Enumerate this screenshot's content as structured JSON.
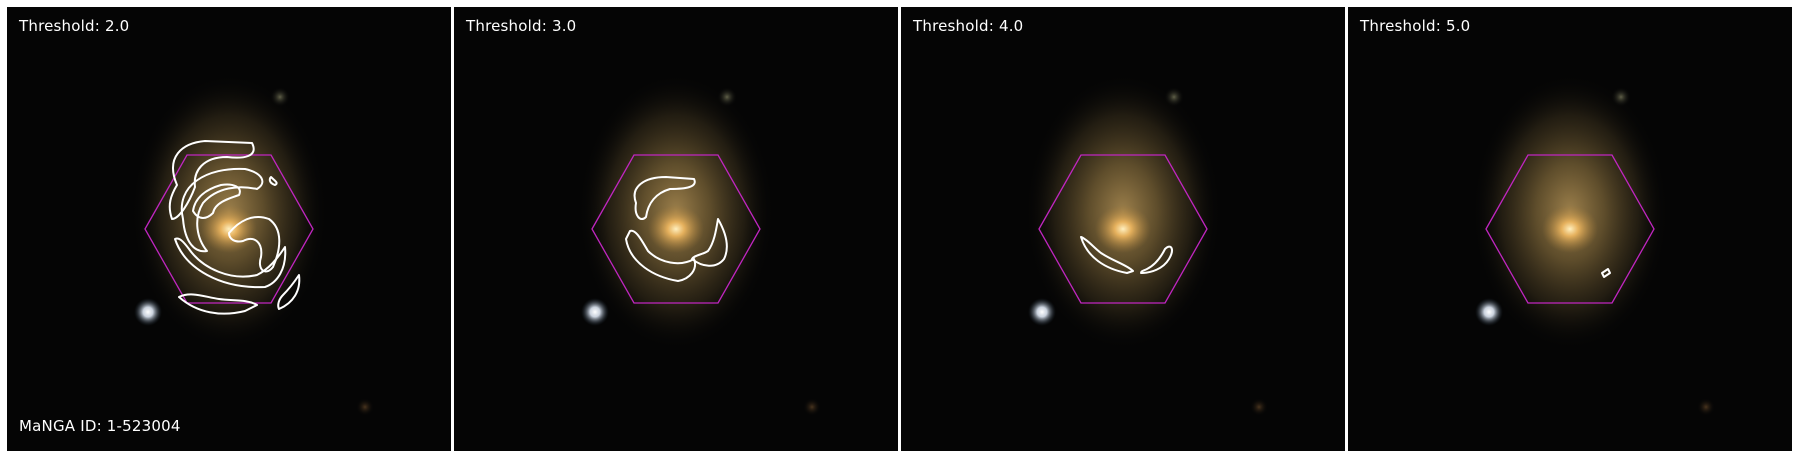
{
  "figure": {
    "manga_id_label": "MaNGA ID: 1-523004",
    "panels": [
      {
        "threshold_label": "Threshold: 2.0"
      },
      {
        "threshold_label": "Threshold: 3.0"
      },
      {
        "threshold_label": "Threshold: 4.0"
      },
      {
        "threshold_label": "Threshold: 5.0"
      }
    ]
  },
  "colors": {
    "background": "#050505",
    "hexagon": "#c026c0",
    "contour": "#ffffff",
    "galaxy_core": "#f2c070",
    "galaxy_halo": "#8a7040",
    "foreground_star": "#dfe8f5"
  }
}
